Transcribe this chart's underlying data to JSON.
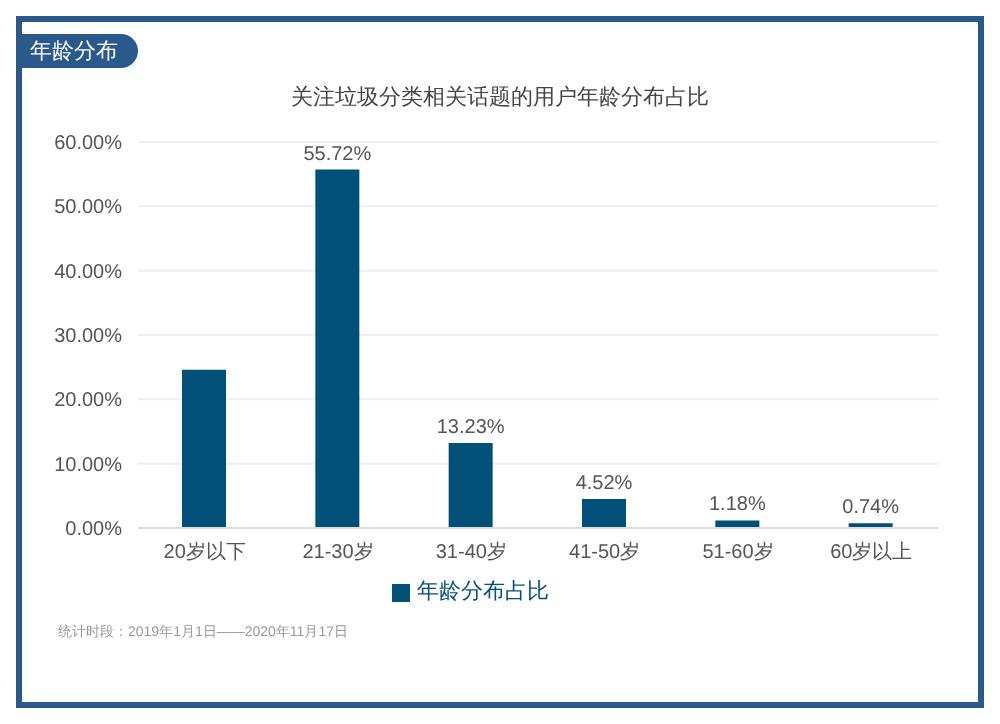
{
  "chart_data": {
    "type": "bar",
    "title": "关注垃圾分类相关话题的用户年龄分布占比",
    "annotations": [
      "年龄分布",
      "统计时段：2019年1月1日——2020年11月17日"
    ],
    "categories": [
      "20岁以下",
      "21-30岁",
      "31-40岁",
      "41-50岁",
      "51-60岁",
      "60岁以上"
    ],
    "series": [
      {
        "name": "年龄分布占比",
        "color": "#005078",
        "values": [
          24.6,
          55.72,
          13.23,
          4.52,
          1.18,
          0.74
        ],
        "value_labels": [
          null,
          "55.72%",
          "13.23%",
          "4.52%",
          "1.18%",
          "0.74%"
        ]
      }
    ],
    "ylim": [
      0,
      60
    ],
    "yticks": [
      {
        "value": 0,
        "label": "0.00%"
      },
      {
        "value": 10,
        "label": "10.00%"
      },
      {
        "value": 20,
        "label": "20.00%"
      },
      {
        "value": 30,
        "label": "30.00%"
      },
      {
        "value": 40,
        "label": "40.00%"
      },
      {
        "value": 50,
        "label": "50.00%"
      },
      {
        "value": 60,
        "label": "60.00%"
      }
    ],
    "grid": "y",
    "legend": "bottom"
  }
}
